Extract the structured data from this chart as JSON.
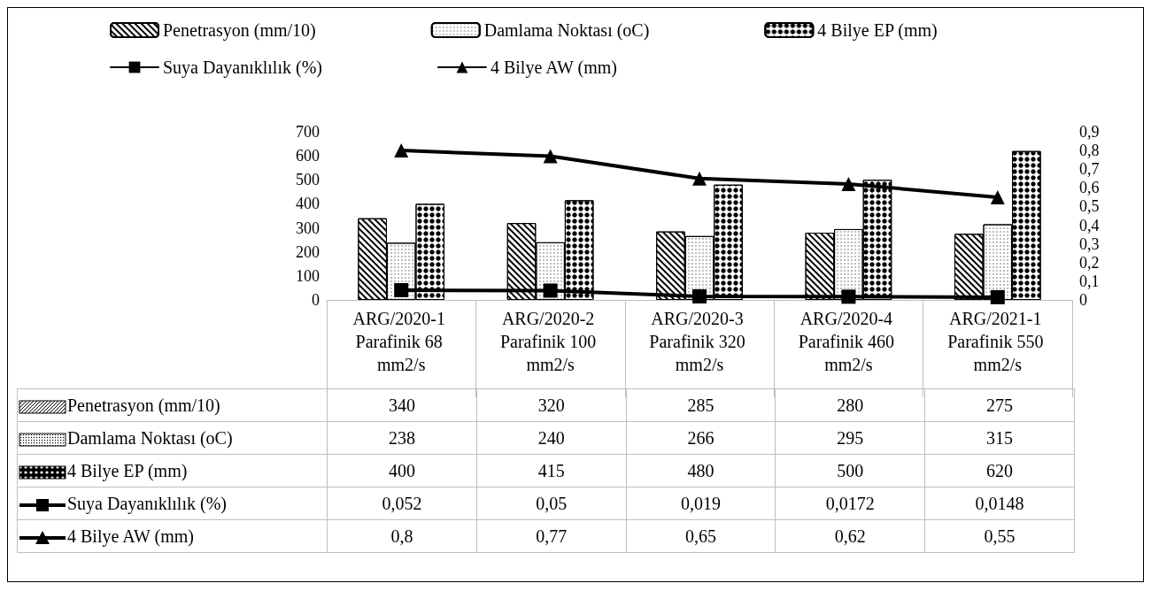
{
  "chart_data": {
    "type": "bar",
    "categories": [
      "ARG/2020-1 Parafinik 68 mm2/s",
      "ARG/2020-2 Parafinik 100 mm2/s",
      "ARG/2020-3 Parafinik 320 mm2/s",
      "ARG/2020-4 Parafinik 460 mm2/s",
      "ARG/2021-1 Parafinik 550 mm2/s"
    ],
    "series": [
      {
        "name": "Penetrasyon (mm/10)",
        "color": "#000000",
        "values": [
          340,
          320,
          285,
          280,
          275
        ],
        "value_labels": [
          "340",
          "320",
          "285",
          "280",
          "275"
        ]
      },
      {
        "name": "Damlama Noktası (oC)",
        "color": "#000000",
        "values": [
          238,
          240,
          266,
          295,
          315
        ],
        "value_labels": [
          "238",
          "240",
          "266",
          "295",
          "315"
        ]
      },
      {
        "name": "4 Bilye EP (mm)",
        "color": "#000000",
        "values": [
          400,
          415,
          480,
          500,
          620
        ],
        "value_labels": [
          "400",
          "415",
          "480",
          "500",
          "620"
        ]
      },
      {
        "name": "Suya Dayanıklılık (%)",
        "type": "line",
        "axis": "y2",
        "marker": "square",
        "color": "#000000",
        "values": [
          0.052,
          0.05,
          0.019,
          0.0172,
          0.0148
        ],
        "value_labels": [
          "0,052",
          "0,05",
          "0,019",
          "0,0172",
          "0,0148"
        ]
      },
      {
        "name": "4 Bilye AW (mm)",
        "type": "line",
        "axis": "y2",
        "marker": "triangle",
        "color": "#000000",
        "values": [
          0.8,
          0.77,
          0.65,
          0.62,
          0.55
        ],
        "value_labels": [
          "0,8",
          "0,77",
          "0,65",
          "0,62",
          "0,55"
        ]
      }
    ],
    "ylim": [
      0,
      700
    ],
    "yticks": [
      0,
      100,
      200,
      300,
      400,
      500,
      600,
      700
    ],
    "y2lim": [
      0,
      0.9
    ],
    "y2ticks": [
      0,
      {
        "value": 0.1,
        "label": "0,1"
      },
      {
        "value": 0.2,
        "label": "0,2"
      },
      {
        "value": 0.3,
        "label": "0,3"
      },
      {
        "value": 0.4,
        "label": "0,4"
      },
      {
        "value": 0.5,
        "label": "0,5"
      },
      {
        "value": 0.6,
        "label": "0,6"
      },
      {
        "value": 0.7,
        "label": "0,7"
      },
      {
        "value": 0.8,
        "label": "0,8"
      },
      {
        "value": 0.9,
        "label": "0,9"
      }
    ],
    "grid": false,
    "legend": "top left"
  }
}
